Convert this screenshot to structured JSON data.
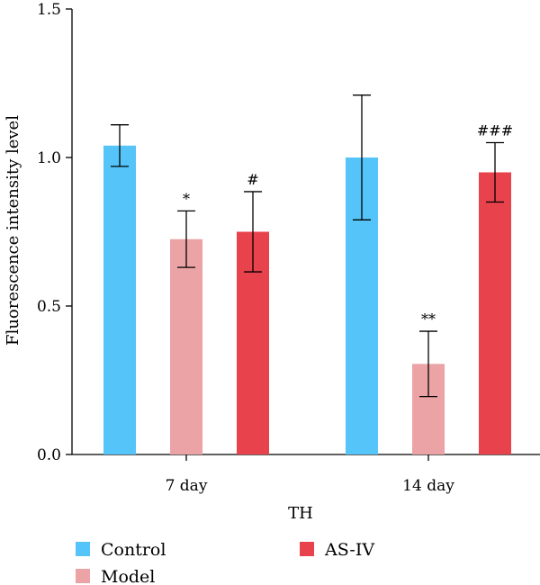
{
  "chart_data": {
    "type": "bar",
    "categories": [
      "7 day",
      "14 day"
    ],
    "xlabel": "TH",
    "ylabel": "Fluorescence intensity level",
    "ylim": [
      0,
      1.5
    ],
    "yticks": [
      "0.0",
      "0.5",
      "1.0",
      "1.5"
    ],
    "grid": false,
    "legend_position": "bottom",
    "series": [
      {
        "name": "Control",
        "color": "#55c4f8",
        "values": [
          1.04,
          1.0
        ],
        "errors": [
          0.07,
          0.21
        ],
        "sig": [
          "",
          ""
        ]
      },
      {
        "name": "Model",
        "color": "#eba3a6",
        "values": [
          0.725,
          0.305
        ],
        "errors": [
          0.095,
          0.11
        ],
        "sig": [
          "*",
          "**"
        ]
      },
      {
        "name": "AS-IV",
        "color": "#e8424c",
        "values": [
          0.75,
          0.95
        ],
        "errors": [
          0.135,
          0.1
        ],
        "sig": [
          "#",
          "###"
        ]
      }
    ]
  }
}
